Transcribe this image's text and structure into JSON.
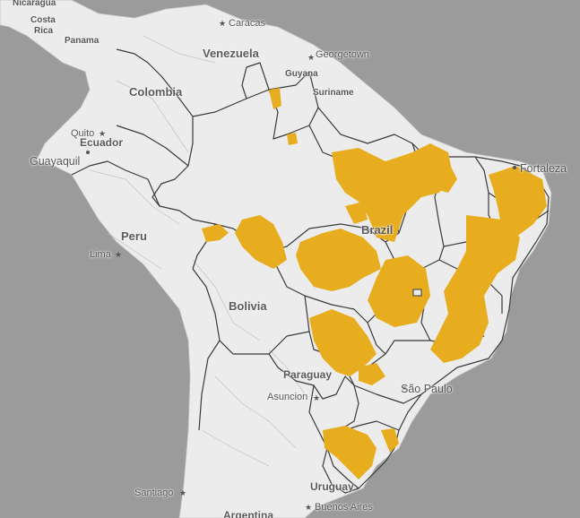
{
  "colors": {
    "ocean": "#9b9b9b",
    "land": "#ececec",
    "border": "#3a3a3a",
    "subborder": "#b4b4b4",
    "highlight": "#e8ad1f"
  },
  "countries": {
    "nicaragua": "Nicaragua",
    "costa_rica_1": "Costa",
    "costa_rica_2": "Rica",
    "panama": "Panama",
    "venezuela": "Venezuela",
    "guyana": "Guyana",
    "suriname": "Suriname",
    "colombia": "Colombia",
    "ecuador": "Ecuador",
    "peru": "Peru",
    "bolivia": "Bolivia",
    "brazil": "Brazil",
    "paraguay": "Paraguay",
    "uruguay": "Uruguay",
    "argentina": "Argentina"
  },
  "cities": {
    "caracas": "Caracas",
    "georgetown": "Georgetown",
    "quito": "Quito",
    "guayaquil": "Guayaquil",
    "lima": "Lima",
    "fortaleza": "Fortaleza",
    "asuncion": "Asuncion",
    "sao_paulo": "São Paulo",
    "santiago": "Santiago",
    "buenos_aires": "Buenos Aires"
  }
}
